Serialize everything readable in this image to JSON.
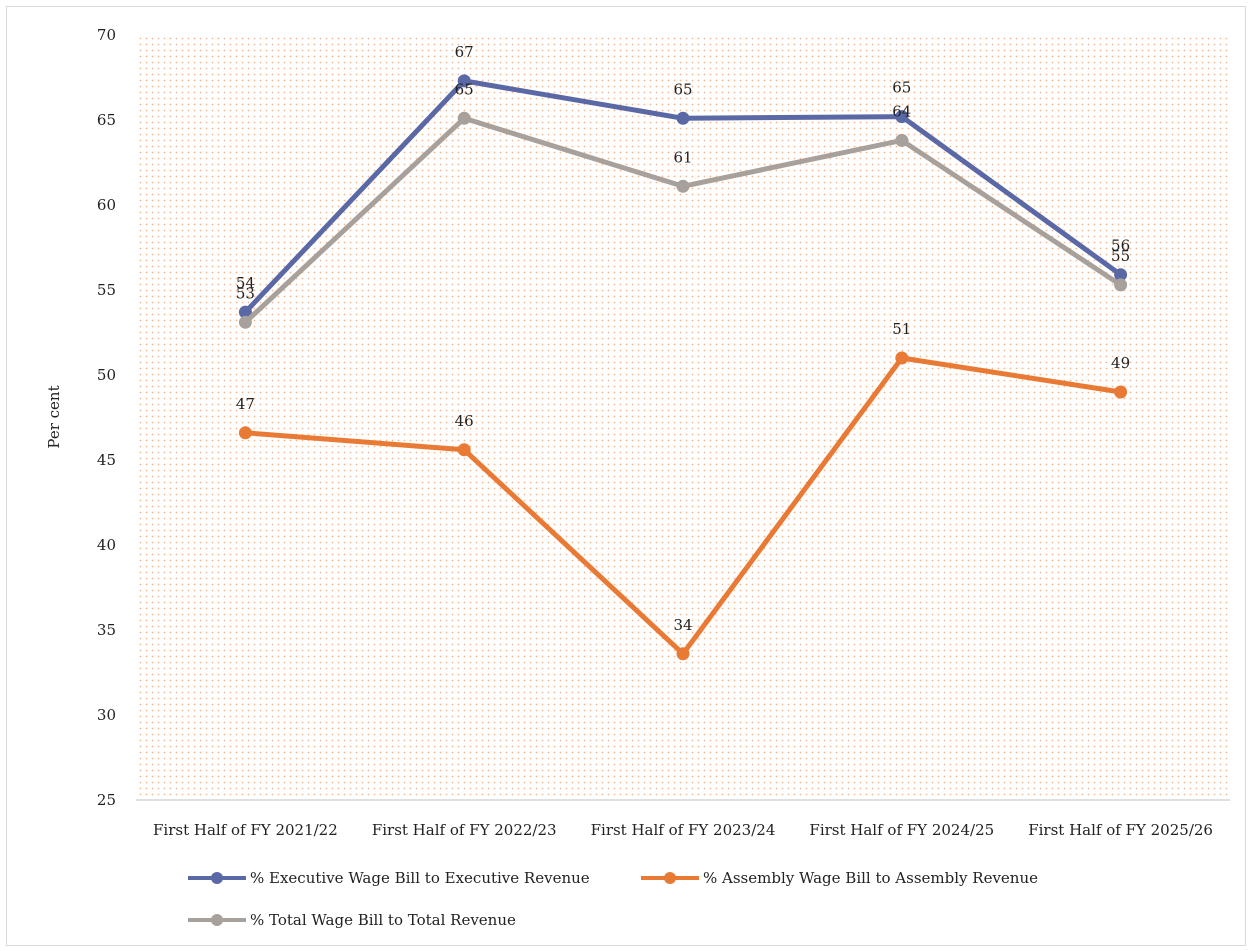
{
  "chart_data": {
    "type": "line",
    "title": "",
    "xlabel": "",
    "ylabel": "Per cent",
    "ylim": [
      25,
      70
    ],
    "yticks": [
      25,
      30,
      35,
      40,
      45,
      50,
      55,
      60,
      65,
      70
    ],
    "categories": [
      "First Half of FY 2021/22",
      "First Half of FY 2022/23",
      "First Half of FY 2023/24",
      "First Half of FY 2024/25",
      "First Half of FY 2025/26"
    ],
    "series": [
      {
        "name": "% Executive Wage Bill to Executive Revenue",
        "color": "#5b68a6",
        "values": [
          53.7,
          67.3,
          65.1,
          65.2,
          55.9
        ],
        "labels": [
          "54",
          "67",
          "65",
          "65",
          "56"
        ]
      },
      {
        "name": "% Assembly Wage Bill to Assembly Revenue",
        "color": "#e97a35",
        "values": [
          46.6,
          45.6,
          33.6,
          51.0,
          49.0
        ],
        "labels": [
          "47",
          "46",
          "34",
          "51",
          "49"
        ]
      },
      {
        "name": "% Total Wage Bill to Total Revenue",
        "color": "#a8a09a",
        "values": [
          53.1,
          65.1,
          61.1,
          63.8,
          55.3
        ],
        "labels": [
          "53",
          "65",
          "61",
          "64",
          "55"
        ]
      }
    ],
    "grid": false,
    "plot_background": "dotted-orange",
    "legend_position": "bottom"
  }
}
